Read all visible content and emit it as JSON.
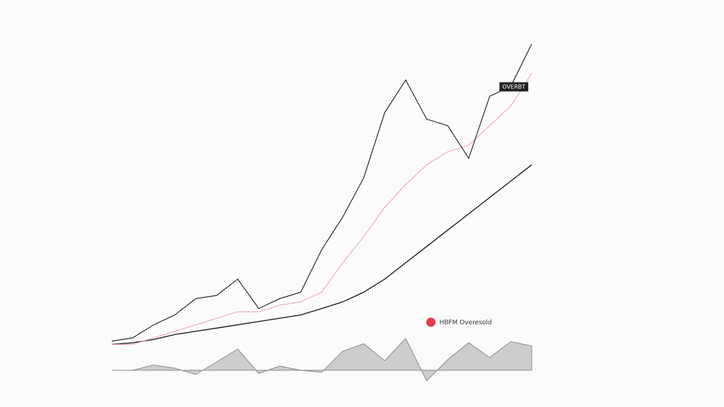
{
  "chart_data": {
    "type": "line",
    "title": "",
    "xlabel": "",
    "ylabel": "",
    "grid": false,
    "legend_position": "lower-middle",
    "x": [
      0,
      5,
      10,
      15,
      20,
      25,
      30,
      35,
      40,
      45,
      50,
      55,
      60,
      65,
      70,
      75,
      80,
      85,
      90,
      95,
      100
    ],
    "xlim": [
      0,
      100
    ],
    "ylim": [
      0,
      100
    ],
    "series": [
      {
        "key": "price",
        "color": "#1a1a1a",
        "values": [
          2,
          3,
          7,
          10,
          15,
          16,
          21,
          12,
          15,
          17,
          30,
          40,
          52,
          72,
          82,
          70,
          68,
          58,
          77,
          80,
          93
        ]
      },
      {
        "key": "fast_ma",
        "color": "#e8a0a8",
        "values": [
          1,
          1,
          3,
          5,
          7,
          9,
          11,
          11,
          13,
          14,
          17,
          26,
          34,
          43,
          50,
          56,
          60,
          62,
          68,
          74,
          84
        ]
      },
      {
        "key": "slow_ma",
        "color": "#111111",
        "values": [
          1,
          1.5,
          2.5,
          4,
          5,
          6,
          7,
          8,
          9,
          10,
          12,
          14,
          17,
          21,
          26,
          31,
          36,
          41,
          46,
          51,
          56
        ]
      }
    ],
    "oscillator": {
      "color": "#999999",
      "values": [
        0,
        0,
        5,
        2,
        -4,
        8,
        20,
        -3,
        4,
        0,
        -2,
        18,
        25,
        9,
        30,
        -10,
        10,
        26,
        12,
        27,
        23
      ]
    },
    "annotations": [
      {
        "text": "OVERBT",
        "x": 93,
        "y": 80,
        "style": "tag"
      },
      {
        "text": "HBFM Overesold",
        "x": 76,
        "y": -6,
        "style": "legend-dot",
        "color": "#e8394a"
      }
    ]
  }
}
